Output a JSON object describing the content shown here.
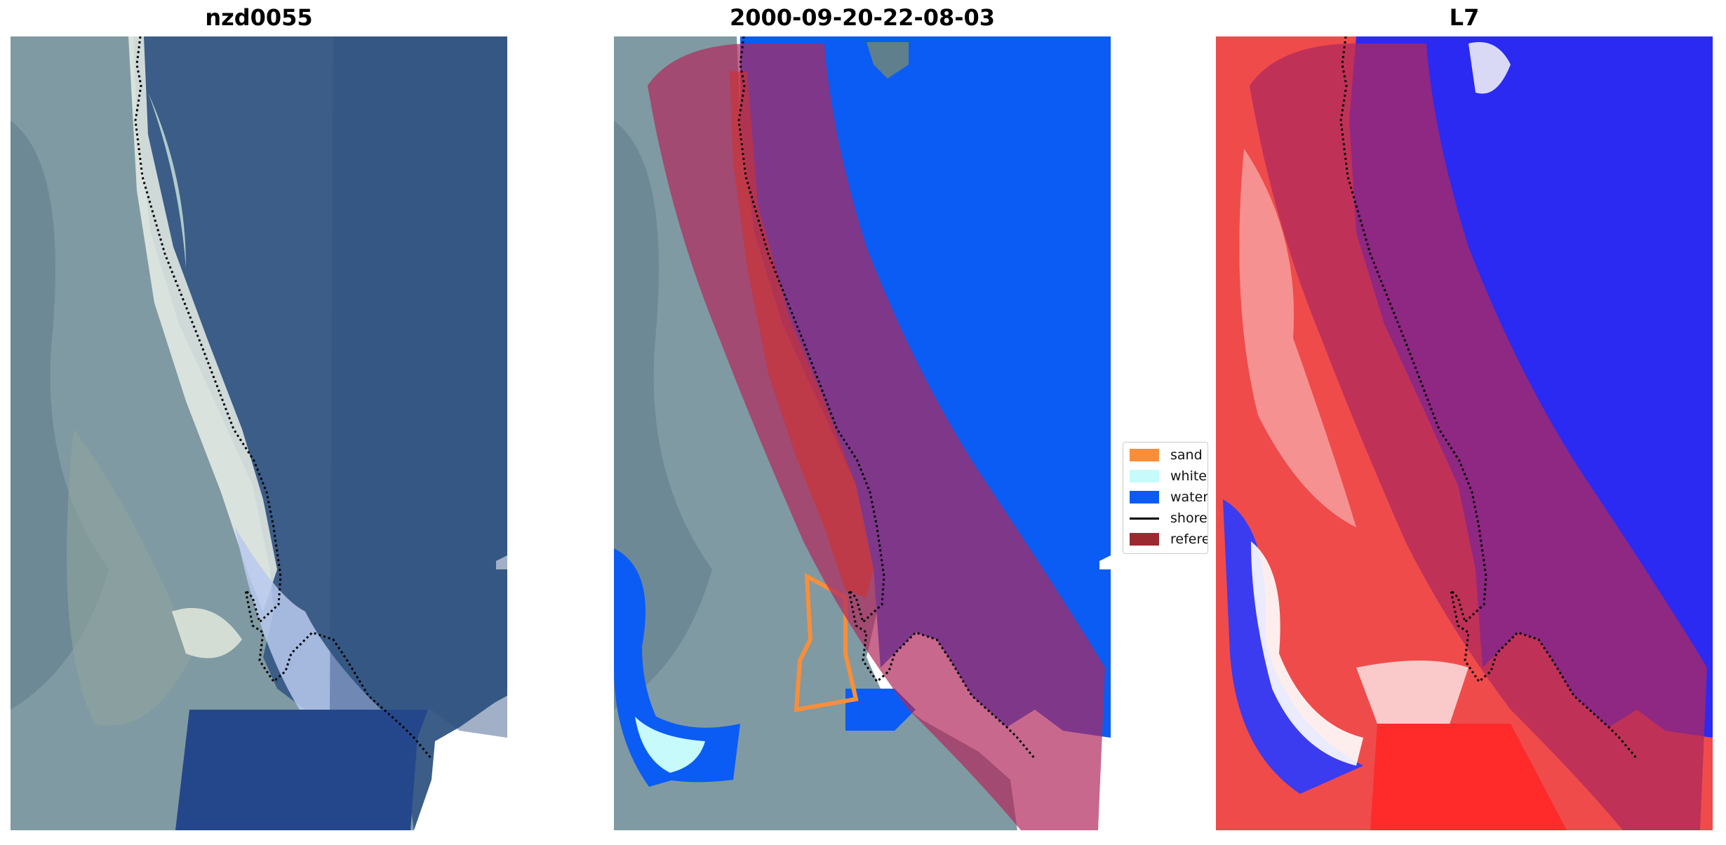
{
  "panels": [
    {
      "title": "nzd0055",
      "kind": "rgb"
    },
    {
      "title": "2000-09-20-22-08-03",
      "kind": "classified"
    },
    {
      "title": "L7",
      "kind": "index"
    }
  ],
  "legend": {
    "items": [
      {
        "label": "sand",
        "color": "#f98e3a",
        "type": "patch"
      },
      {
        "label": "whitewater",
        "color": "#c6fafb",
        "type": "patch"
      },
      {
        "label": "water",
        "color": "#0a5cf5",
        "type": "patch"
      },
      {
        "label": "shoreline",
        "color": "#000000",
        "type": "line"
      },
      {
        "label": "reference",
        "color": "#9b2a30",
        "type": "patch"
      }
    ]
  },
  "colors": {
    "land": "#7f9aa2",
    "ocean_rgb": "#3b5d87",
    "water_class": "#0a5cf5",
    "reference_buffer": "#b0285c",
    "index_land": "#ef4b4b",
    "index_water": "#2a2af2"
  }
}
